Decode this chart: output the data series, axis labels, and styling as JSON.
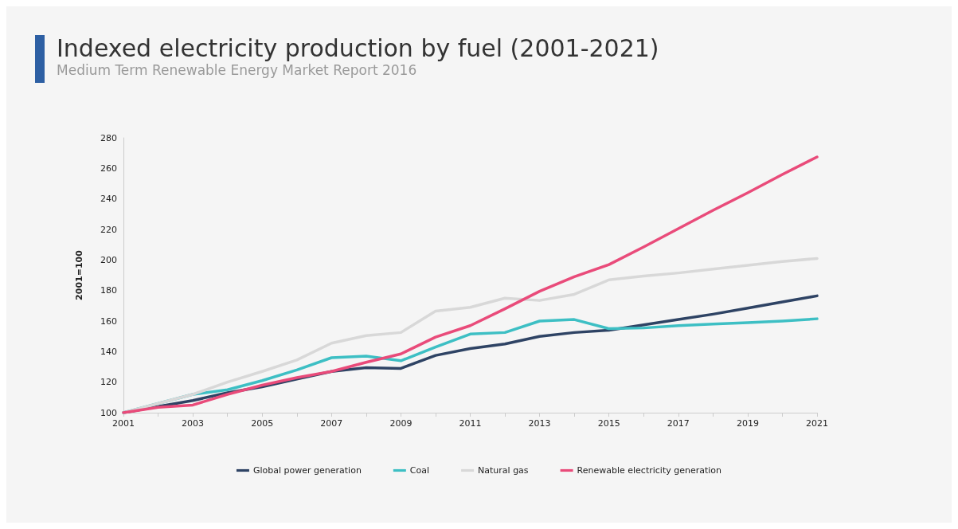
{
  "chart_data": {
    "type": "line",
    "title": "Indexed electricity production by fuel (2001-2021)",
    "subtitle": "Medium Term Renewable Energy Market Report 2016",
    "ylabel": "2001=100",
    "x": [
      2001,
      2002,
      2003,
      2004,
      2005,
      2006,
      2007,
      2008,
      2009,
      2010,
      2011,
      2012,
      2013,
      2014,
      2015,
      2016,
      2017,
      2018,
      2019,
      2020,
      2021
    ],
    "series": [
      {
        "name": "Global power generation",
        "color": "#2e4364",
        "values": [
          100,
          104,
          108,
          113,
          117,
          122,
          127,
          129.5,
          129,
          137.5,
          142,
          145,
          150,
          152.5,
          154,
          157.5,
          161,
          164.5,
          168.5,
          172.5,
          176.5
        ]
      },
      {
        "name": "Coal",
        "color": "#3dbfc4",
        "values": [
          100,
          106,
          112,
          115,
          121,
          128,
          136,
          137,
          134,
          143,
          151.5,
          152.5,
          160,
          161,
          155,
          155.5,
          157,
          158,
          159,
          160,
          161.5
        ]
      },
      {
        "name": "Natural gas",
        "color": "#d8d8d8",
        "values": [
          100,
          106,
          112,
          120,
          127,
          134.5,
          145.5,
          150.5,
          152.5,
          166.5,
          169,
          175,
          173.5,
          177.5,
          187,
          189.5,
          191.5,
          194,
          196.5,
          199,
          201
        ]
      },
      {
        "name": "Renewable electricity generation",
        "color": "#e94b7a",
        "values": [
          100,
          103.5,
          105,
          112,
          118,
          123,
          127,
          133,
          138.5,
          149.5,
          157,
          168,
          179.5,
          189,
          197,
          208.5,
          220.5,
          232.5,
          244,
          256,
          267.5
        ]
      }
    ],
    "xlim": [
      2001,
      2021
    ],
    "xticks": [
      2001,
      {
        "value": 2002,
        "label": null
      },
      2003,
      {
        "value": 2004,
        "label": null
      },
      2005,
      {
        "value": 2006,
        "label": null
      },
      2007,
      {
        "value": 2008,
        "label": null
      },
      2009,
      {
        "value": 2010,
        "label": null
      },
      2011,
      {
        "value": 2012,
        "label": null
      },
      2013,
      {
        "value": 2014,
        "label": null
      },
      2015,
      {
        "value": 2016,
        "label": null
      },
      2017,
      {
        "value": 2018,
        "label": null
      },
      2019,
      {
        "value": 2020,
        "label": null
      },
      2021
    ],
    "ylim": [
      100,
      280
    ],
    "yticks": [
      100,
      120,
      140,
      160,
      180,
      200,
      220,
      240,
      260,
      280
    ],
    "grid": false,
    "legend": "bottom",
    "marker": "none",
    "line_style": "solid"
  }
}
